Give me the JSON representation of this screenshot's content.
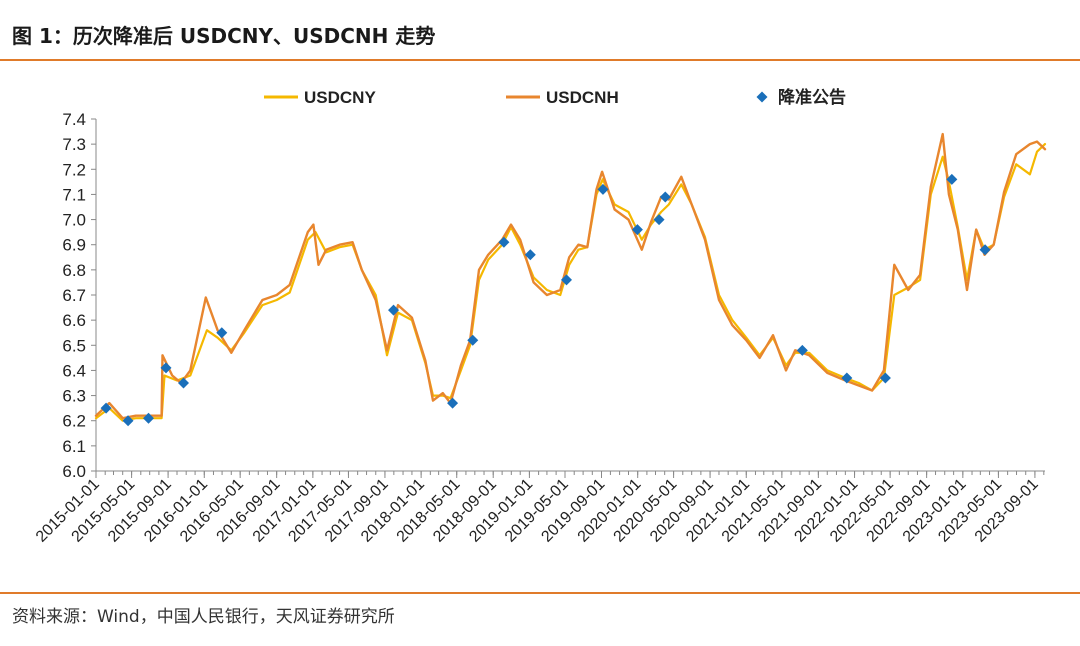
{
  "figure": {
    "title": "图 1：历次降准后 USDCNY、USDCNH 走势",
    "source": "资料来源：Wind，中国人民银行，天风证券研究所"
  },
  "chart_data": {
    "type": "line",
    "legend_position": "top",
    "grid": false,
    "ylim": [
      6.0,
      7.4
    ],
    "y_ticks": [
      "6.0",
      "6.1",
      "6.2",
      "6.3",
      "6.4",
      "6.5",
      "6.6",
      "6.7",
      "6.8",
      "6.9",
      "7.0",
      "7.1",
      "7.2",
      "7.3",
      "7.4"
    ],
    "xlim": [
      "2015-01-01",
      "2023-10-05"
    ],
    "x_ticks": [
      "2015-01-01",
      "2015-05-01",
      "2015-09-01",
      "2016-01-01",
      "2016-05-01",
      "2016-09-01",
      "2017-01-01",
      "2017-05-01",
      "2017-09-01",
      "2018-01-01",
      "2018-05-01",
      "2018-09-01",
      "2019-01-01",
      "2019-05-01",
      "2019-09-01",
      "2020-01-01",
      "2020-05-01",
      "2020-09-01",
      "2021-01-01",
      "2021-05-01",
      "2021-09-01",
      "2022-01-01",
      "2022-05-01",
      "2022-09-01",
      "2023-01-01",
      "2023-05-01",
      "2023-09-01"
    ],
    "series": [
      {
        "name": "USDCNY",
        "style": "line",
        "color": "#f5b800",
        "x": [
          "2015-01-01",
          "2015-02-15",
          "2015-04-01",
          "2015-05-15",
          "2015-07-01",
          "2015-08-10",
          "2015-08-20",
          "2015-10-01",
          "2015-11-15",
          "2016-01-10",
          "2016-02-15",
          "2016-04-01",
          "2016-05-15",
          "2016-07-15",
          "2016-09-01",
          "2016-10-15",
          "2016-12-15",
          "2017-01-10",
          "2017-02-15",
          "2017-04-01",
          "2017-05-15",
          "2017-06-15",
          "2017-08-01",
          "2017-09-08",
          "2017-10-15",
          "2017-12-01",
          "2018-01-15",
          "2018-02-10",
          "2018-03-15",
          "2018-04-10",
          "2018-05-15",
          "2018-06-15",
          "2018-07-15",
          "2018-08-15",
          "2018-10-01",
          "2018-10-31",
          "2018-12-01",
          "2019-01-15",
          "2019-03-01",
          "2019-04-15",
          "2019-05-15",
          "2019-06-15",
          "2019-07-15",
          "2019-08-15",
          "2019-09-05",
          "2019-10-15",
          "2019-12-01",
          "2020-01-15",
          "2020-02-15",
          "2020-03-20",
          "2020-04-15",
          "2020-05-27",
          "2020-07-01",
          "2020-08-15",
          "2020-10-01",
          "2020-11-15",
          "2021-01-01",
          "2021-02-15",
          "2021-04-01",
          "2021-05-15",
          "2021-06-15",
          "2021-08-01",
          "2021-10-01",
          "2021-12-01",
          "2022-01-15",
          "2022-03-01",
          "2022-04-10",
          "2022-05-15",
          "2022-07-01",
          "2022-08-10",
          "2022-09-15",
          "2022-10-25",
          "2022-11-15",
          "2022-12-15",
          "2023-01-15",
          "2023-02-15",
          "2023-03-15",
          "2023-04-15",
          "2023-05-20",
          "2023-06-30",
          "2023-08-15",
          "2023-09-08",
          "2023-10-05"
        ],
        "y": [
          6.21,
          6.25,
          6.2,
          6.21,
          6.21,
          6.21,
          6.38,
          6.36,
          6.38,
          6.56,
          6.53,
          6.48,
          6.55,
          6.66,
          6.68,
          6.71,
          6.92,
          6.95,
          6.87,
          6.89,
          6.9,
          6.8,
          6.7,
          6.46,
          6.63,
          6.6,
          6.43,
          6.3,
          6.3,
          6.29,
          6.4,
          6.5,
          6.76,
          6.84,
          6.9,
          6.97,
          6.9,
          6.77,
          6.72,
          6.7,
          6.82,
          6.88,
          6.89,
          7.1,
          7.16,
          7.06,
          7.03,
          6.92,
          6.98,
          7.03,
          7.06,
          7.14,
          7.06,
          6.93,
          6.7,
          6.6,
          6.53,
          6.46,
          6.53,
          6.42,
          6.47,
          6.47,
          6.4,
          6.37,
          6.35,
          6.32,
          6.37,
          6.7,
          6.73,
          6.76,
          7.1,
          7.25,
          7.15,
          6.97,
          6.76,
          6.96,
          6.88,
          6.9,
          7.09,
          7.22,
          7.18,
          7.27,
          7.3
        ]
      },
      {
        "name": "USDCNH",
        "style": "line",
        "color": "#e8862e",
        "x": [
          "2015-01-01",
          "2015-02-15",
          "2015-04-01",
          "2015-05-15",
          "2015-07-01",
          "2015-08-10",
          "2015-08-13",
          "2015-09-15",
          "2015-10-15",
          "2015-11-15",
          "2016-01-06",
          "2016-02-15",
          "2016-04-01",
          "2016-05-15",
          "2016-07-15",
          "2016-09-01",
          "2016-10-15",
          "2016-12-15",
          "2017-01-03",
          "2017-01-20",
          "2017-02-15",
          "2017-04-01",
          "2017-05-15",
          "2017-06-15",
          "2017-08-01",
          "2017-09-08",
          "2017-10-15",
          "2017-12-01",
          "2018-01-15",
          "2018-02-10",
          "2018-03-15",
          "2018-04-10",
          "2018-05-15",
          "2018-06-15",
          "2018-07-15",
          "2018-08-15",
          "2018-10-01",
          "2018-10-31",
          "2018-12-01",
          "2019-01-15",
          "2019-03-01",
          "2019-04-15",
          "2019-05-15",
          "2019-06-15",
          "2019-07-15",
          "2019-08-15",
          "2019-09-03",
          "2019-10-15",
          "2019-12-01",
          "2020-01-15",
          "2020-02-15",
          "2020-03-20",
          "2020-04-15",
          "2020-05-27",
          "2020-07-01",
          "2020-08-15",
          "2020-10-01",
          "2020-11-15",
          "2021-01-01",
          "2021-02-15",
          "2021-04-01",
          "2021-05-15",
          "2021-06-15",
          "2021-08-01",
          "2021-10-01",
          "2021-12-01",
          "2022-01-15",
          "2022-03-01",
          "2022-04-10",
          "2022-05-15",
          "2022-07-01",
          "2022-08-10",
          "2022-09-15",
          "2022-10-25",
          "2022-11-15",
          "2022-12-15",
          "2023-01-15",
          "2023-02-15",
          "2023-03-15",
          "2023-04-15",
          "2023-05-20",
          "2023-06-30",
          "2023-08-15",
          "2023-09-08",
          "2023-10-05"
        ],
        "y": [
          6.22,
          6.27,
          6.21,
          6.22,
          6.22,
          6.22,
          6.46,
          6.38,
          6.35,
          6.4,
          6.69,
          6.56,
          6.47,
          6.56,
          6.68,
          6.7,
          6.74,
          6.95,
          6.98,
          6.82,
          6.88,
          6.9,
          6.91,
          6.8,
          6.68,
          6.48,
          6.66,
          6.61,
          6.44,
          6.28,
          6.31,
          6.27,
          6.42,
          6.52,
          6.8,
          6.86,
          6.92,
          6.98,
          6.92,
          6.75,
          6.7,
          6.72,
          6.85,
          6.9,
          6.89,
          7.12,
          7.19,
          7.04,
          7.0,
          6.88,
          6.99,
          7.09,
          7.08,
          7.17,
          7.06,
          6.92,
          6.68,
          6.58,
          6.52,
          6.45,
          6.54,
          6.4,
          6.48,
          6.46,
          6.39,
          6.36,
          6.34,
          6.32,
          6.4,
          6.82,
          6.72,
          6.78,
          7.13,
          7.34,
          7.1,
          6.96,
          6.72,
          6.96,
          6.86,
          6.9,
          7.11,
          7.26,
          7.3,
          7.31,
          7.28
        ]
      },
      {
        "name": "降准公告",
        "style": "marker",
        "color": "#1a6fba",
        "x": [
          "2015-02-04",
          "2015-04-19",
          "2015-06-27",
          "2015-08-25",
          "2015-10-23",
          "2016-02-29",
          "2017-09-30",
          "2018-04-17",
          "2018-06-24",
          "2018-10-07",
          "2019-01-04",
          "2019-05-06",
          "2019-09-06",
          "2019-12-31",
          "2020-03-13",
          "2020-04-03",
          "2021-07-09",
          "2021-12-06",
          "2022-04-15",
          "2022-11-25",
          "2023-03-17"
        ],
        "y": [
          6.25,
          6.2,
          6.21,
          6.41,
          6.35,
          6.55,
          6.64,
          6.27,
          6.52,
          6.91,
          6.86,
          6.76,
          7.12,
          6.96,
          7.0,
          7.09,
          6.48,
          6.37,
          6.37,
          7.16,
          6.88
        ]
      }
    ]
  }
}
